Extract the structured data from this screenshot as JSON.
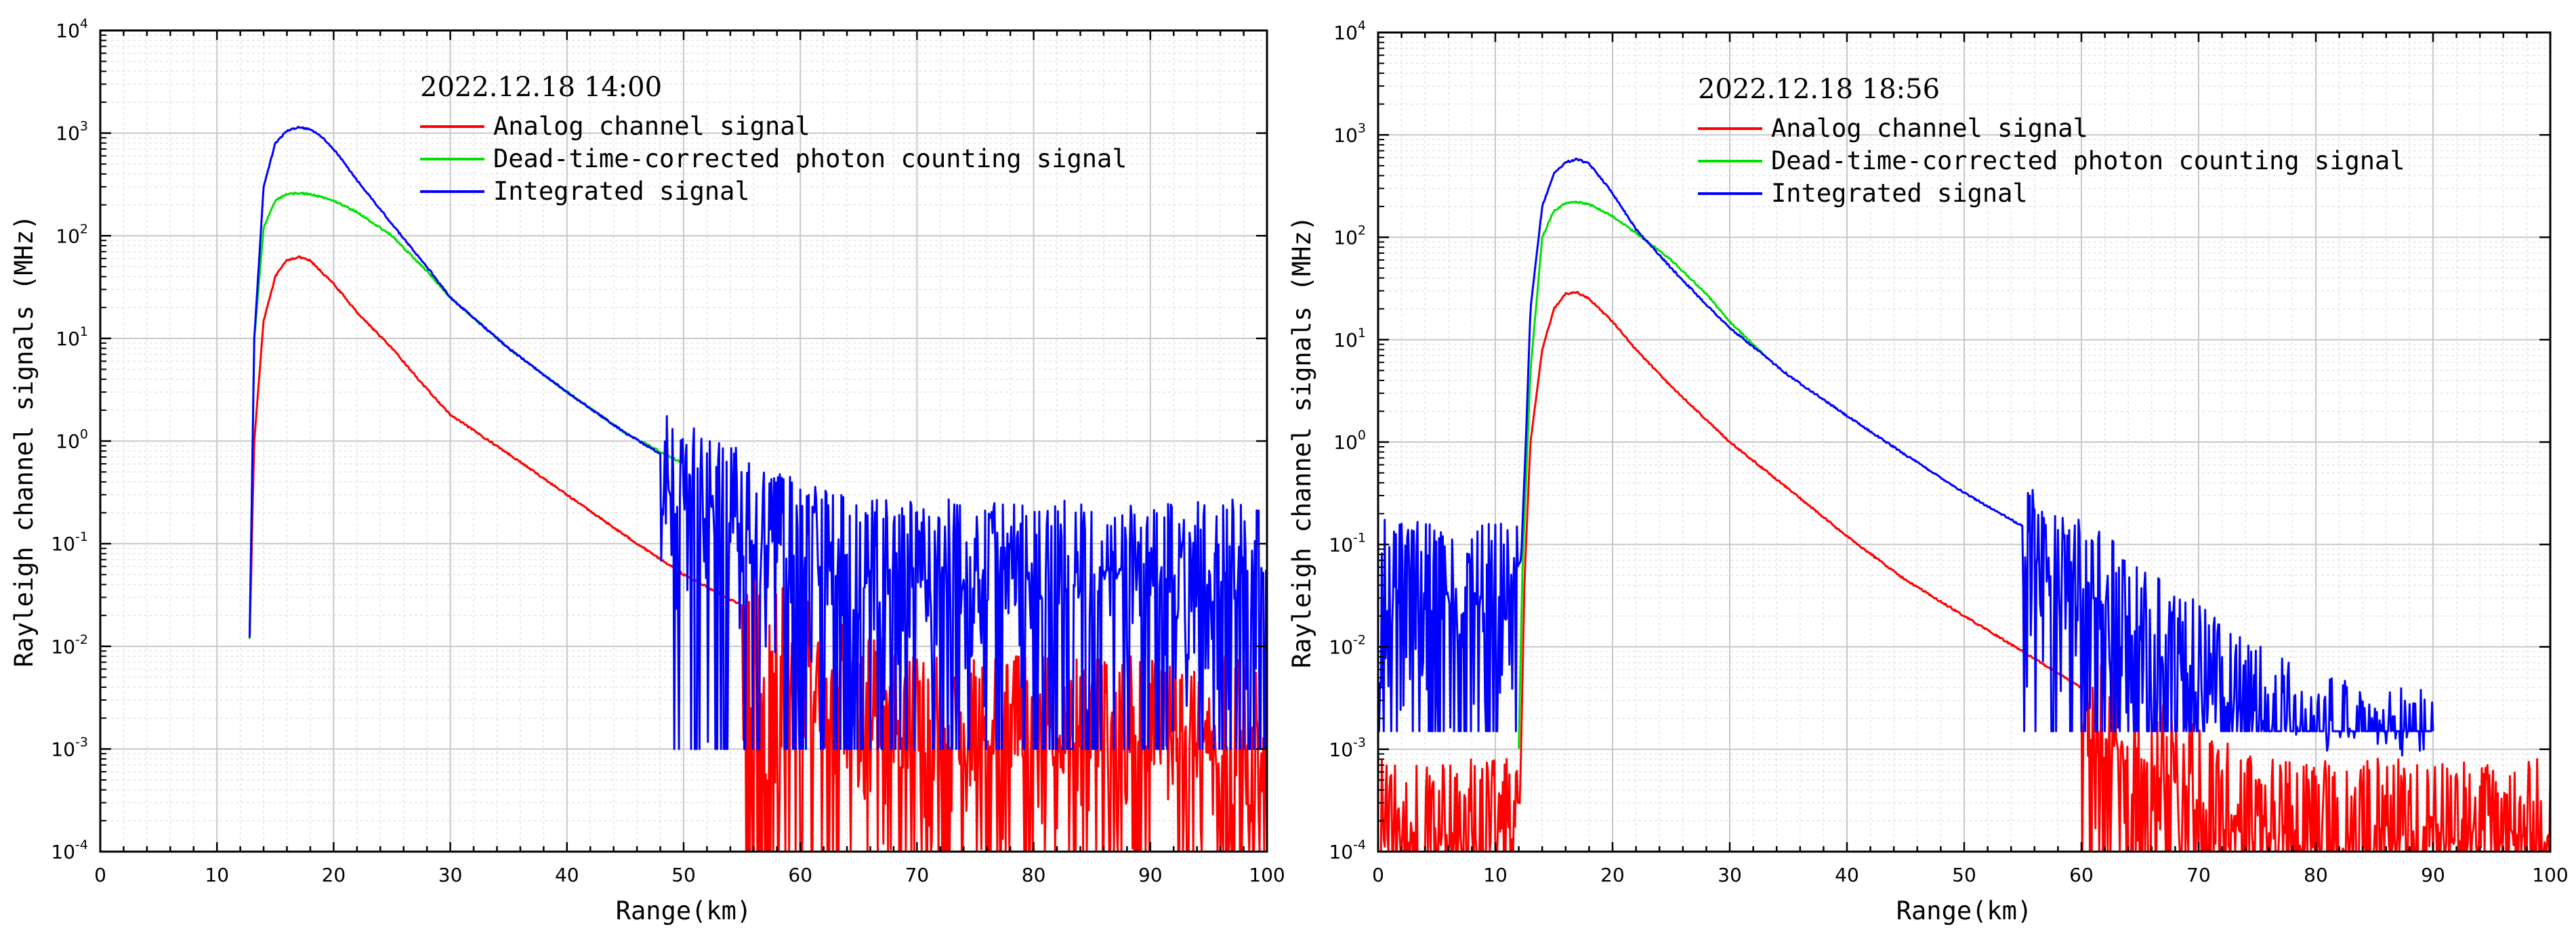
{
  "chart_data": [
    {
      "type": "line",
      "title": "2022.12.18 14:00",
      "xlabel": "Range(km)",
      "ylabel": "Rayleigh channel signals (MHz)",
      "xlim": [
        0,
        100
      ],
      "ylim": [
        0.0001,
        10000
      ],
      "yscale": "log",
      "xticks": [
        "0",
        "10",
        "20",
        "30",
        "40",
        "50",
        "60",
        "70",
        "80",
        "90",
        "100"
      ],
      "yticks": [
        {
          "base": "10",
          "exp": "-4"
        },
        {
          "base": "10",
          "exp": "-3"
        },
        {
          "base": "10",
          "exp": "-2"
        },
        {
          "base": "10",
          "exp": "-1"
        },
        {
          "base": "10",
          "exp": "0"
        },
        {
          "base": "10",
          "exp": "1"
        },
        {
          "base": "10",
          "exp": "2"
        },
        {
          "base": "10",
          "exp": "3"
        },
        {
          "base": "10",
          "exp": "4"
        }
      ],
      "legend_position": "top-left",
      "series": [
        {
          "name": "Analog channel signal",
          "color": "#ff0000",
          "x": [
            12.8,
            13.2,
            14,
            15,
            16,
            17,
            18,
            20,
            22,
            25,
            28,
            30,
            35,
            40,
            45,
            50,
            55,
            60,
            65,
            70,
            75,
            80,
            85,
            90,
            95,
            100
          ],
          "y": [
            0.012,
            1,
            15,
            40,
            58,
            62,
            57,
            34,
            18,
            8,
            3.2,
            1.8,
            0.75,
            0.3,
            0.12,
            0.05,
            0.025,
            0.012,
            0.006,
            0.003,
            0.003,
            0.003,
            0.003,
            0.003,
            0.003,
            0.003
          ],
          "noise_from_x": 55,
          "noise_floor": 0.0001
        },
        {
          "name": "Dead-time-corrected photon counting signal",
          "color": "#00e000",
          "x": [
            12.8,
            13.2,
            14,
            15,
            16,
            17,
            18,
            20,
            22,
            25,
            28,
            30,
            35,
            40,
            45,
            50
          ],
          "y": [
            0.012,
            10,
            120,
            220,
            255,
            260,
            255,
            220,
            170,
            100,
            45,
            25,
            8,
            3,
            1.2,
            0.6
          ]
        },
        {
          "name": "Integrated signal",
          "color": "#0000ff",
          "x": [
            12.8,
            13.2,
            14,
            15,
            16,
            17,
            18,
            19,
            20,
            22,
            25,
            28,
            30,
            35,
            40,
            45,
            50,
            55,
            60,
            65,
            70,
            75,
            80,
            85,
            90,
            95,
            100
          ],
          "y": [
            0.012,
            10,
            300,
            800,
            1050,
            1150,
            1080,
            920,
            700,
            350,
            130,
            50,
            25,
            8,
            3,
            1.2,
            0.55,
            0.3,
            0.15,
            0.1,
            0.1,
            0.1,
            0.1,
            0.1,
            0.1,
            0.1,
            0.1
          ],
          "noise_from_x": 48,
          "noise_floor": 0.001
        }
      ]
    },
    {
      "type": "line",
      "title": "2022.12.18 18:56",
      "xlabel": "Range(km)",
      "ylabel": "Rayleigh channel signals (MHz)",
      "xlim": [
        0,
        100
      ],
      "ylim": [
        0.0001,
        10000
      ],
      "yscale": "log",
      "xticks": [
        "0",
        "10",
        "20",
        "30",
        "40",
        "50",
        "60",
        "70",
        "80",
        "90",
        "100"
      ],
      "yticks": [
        {
          "base": "10",
          "exp": "-4"
        },
        {
          "base": "10",
          "exp": "-3"
        },
        {
          "base": "10",
          "exp": "-2"
        },
        {
          "base": "10",
          "exp": "-1"
        },
        {
          "base": "10",
          "exp": "0"
        },
        {
          "base": "10",
          "exp": "1"
        },
        {
          "base": "10",
          "exp": "2"
        },
        {
          "base": "10",
          "exp": "3"
        },
        {
          "base": "10",
          "exp": "4"
        }
      ],
      "legend_position": "top-left",
      "series": [
        {
          "name": "Analog channel signal",
          "color": "#ff0000",
          "x": [
            0,
            5,
            11.9,
            12.1,
            12.5,
            13,
            14,
            15,
            16,
            17,
            18,
            20,
            22,
            25,
            30,
            35,
            40,
            45,
            50,
            55,
            60,
            65,
            70,
            75,
            80,
            85,
            90,
            95,
            100
          ],
          "y": [
            0.0003,
            0.0003,
            0.0003,
            0.0003,
            0.05,
            1,
            8,
            20,
            28,
            29,
            25,
            15,
            8,
            3.5,
            1,
            0.35,
            0.12,
            0.045,
            0.02,
            0.009,
            0.004,
            0.0015,
            0.0006,
            0.0003,
            0.0003,
            0.0003,
            0.0003,
            0.0003,
            0.0003
          ],
          "noise_ranges": [
            [
              0,
              11.9
            ],
            [
              60,
              100
            ]
          ],
          "noise_floor": 0.0001
        },
        {
          "name": "Dead-time-corrected photon counting signal",
          "color": "#00e000",
          "x": [
            12,
            12.3,
            13,
            14,
            15,
            16,
            17,
            18,
            20,
            22,
            25,
            28,
            30,
            33
          ],
          "y": [
            0.001,
            0.05,
            5,
            100,
            180,
            215,
            220,
            210,
            160,
            110,
            60,
            28,
            15,
            7
          ]
        },
        {
          "name": "Integrated signal",
          "color": "#0000ff",
          "x": [
            0,
            5,
            11.9,
            12.2,
            12.6,
            13,
            14,
            15,
            16,
            17,
            18,
            19,
            20,
            22,
            25,
            28,
            30,
            35,
            40,
            45,
            50,
            55,
            60,
            65,
            70,
            75,
            80,
            85,
            90
          ],
          "y": [
            0.065,
            0.062,
            0.06,
            0.07,
            1,
            20,
            200,
            420,
            540,
            580,
            520,
            380,
            270,
            120,
            50,
            22,
            13,
            4.5,
            1.8,
            0.75,
            0.32,
            0.15,
            0.065,
            0.028,
            0.011,
            0.004,
            0.002,
            0.0015,
            0.0015
          ],
          "noise_ranges": [
            [
              0,
              11.9
            ],
            [
              55,
              90
            ]
          ],
          "noise_floor": 0.0015
        }
      ]
    }
  ]
}
